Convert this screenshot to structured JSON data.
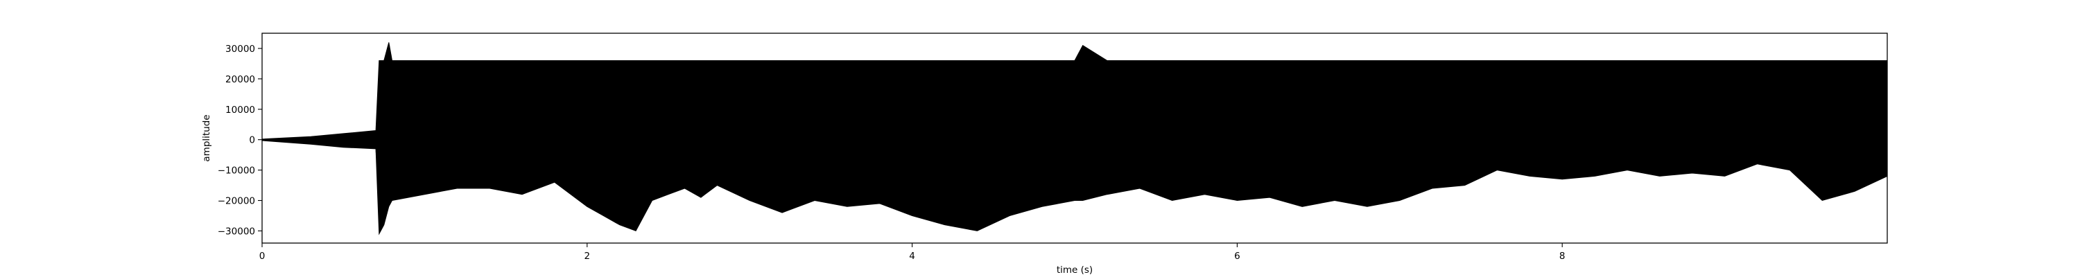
{
  "chart_data": {
    "type": "line",
    "title": "",
    "xlabel": "time (s)",
    "ylabel": "amplitude",
    "xlim": [
      0,
      10
    ],
    "ylim": [
      -34000,
      35000
    ],
    "x_ticks": [
      0,
      2,
      4,
      6,
      8
    ],
    "x_tick_labels": [
      "0",
      "2",
      "4",
      "6",
      "8"
    ],
    "y_ticks": [
      -30000,
      -20000,
      -10000,
      0,
      10000,
      20000,
      30000
    ],
    "y_tick_labels": [
      "−30000",
      "−20000",
      "−10000",
      "0",
      "10000",
      "20000",
      "30000"
    ],
    "grid": false,
    "legend": "none",
    "line_color": "#000000",
    "series": [
      {
        "x": [
          0,
          0.3,
          0.5,
          0.7,
          0.72,
          0.75,
          0.78,
          0.8,
          1.0,
          1.2,
          1.4,
          1.6,
          1.8,
          2.0,
          2.1,
          2.2,
          2.3,
          2.4,
          2.5,
          2.6,
          2.7,
          2.8,
          3.0,
          3.2,
          3.4,
          3.6,
          3.8,
          4.0,
          4.2,
          4.4,
          4.6,
          4.8,
          5.0,
          5.05,
          5.2,
          5.4,
          5.6,
          5.8,
          6.0,
          6.2,
          6.4,
          6.6,
          6.8,
          7.0,
          7.2,
          7.4,
          7.6,
          7.8,
          8.0,
          8.2,
          8.4,
          8.6,
          8.8,
          9.0,
          9.2,
          9.4,
          9.6,
          9.8,
          10.0
        ],
        "max": [
          200,
          1000,
          2000,
          3000,
          26000,
          26000,
          32000,
          26000,
          26000,
          26000,
          26000,
          26000,
          26000,
          26000,
          26000,
          26000,
          26000,
          26000,
          26000,
          26000,
          26000,
          26000,
          26000,
          26000,
          26000,
          26000,
          26000,
          26000,
          26000,
          26000,
          26000,
          26000,
          26000,
          31000,
          26000,
          26000,
          26000,
          26000,
          26000,
          26000,
          26000,
          26000,
          26000,
          26000,
          26000,
          26000,
          26000,
          26000,
          26000,
          26000,
          26000,
          26000,
          26000,
          26000,
          26000,
          26000,
          26000,
          26000,
          26000
        ],
        "min": [
          -300,
          -1500,
          -2500,
          -3000,
          -31000,
          -28000,
          -22000,
          -20000,
          -18000,
          -16000,
          -16000,
          -18000,
          -14000,
          -22000,
          -25000,
          -28000,
          -30000,
          -20000,
          -18000,
          -16000,
          -19000,
          -15000,
          -20000,
          -24000,
          -20000,
          -22000,
          -21000,
          -25000,
          -28000,
          -30000,
          -25000,
          -22000,
          -20000,
          -20000,
          -18000,
          -16000,
          -20000,
          -18000,
          -20000,
          -19000,
          -22000,
          -20000,
          -22000,
          -20000,
          -16000,
          -15000,
          -10000,
          -12000,
          -13000,
          -12000,
          -10000,
          -12000,
          -11000,
          -12000,
          -8000,
          -10000,
          -20000,
          -17000,
          -12000
        ]
      }
    ]
  }
}
